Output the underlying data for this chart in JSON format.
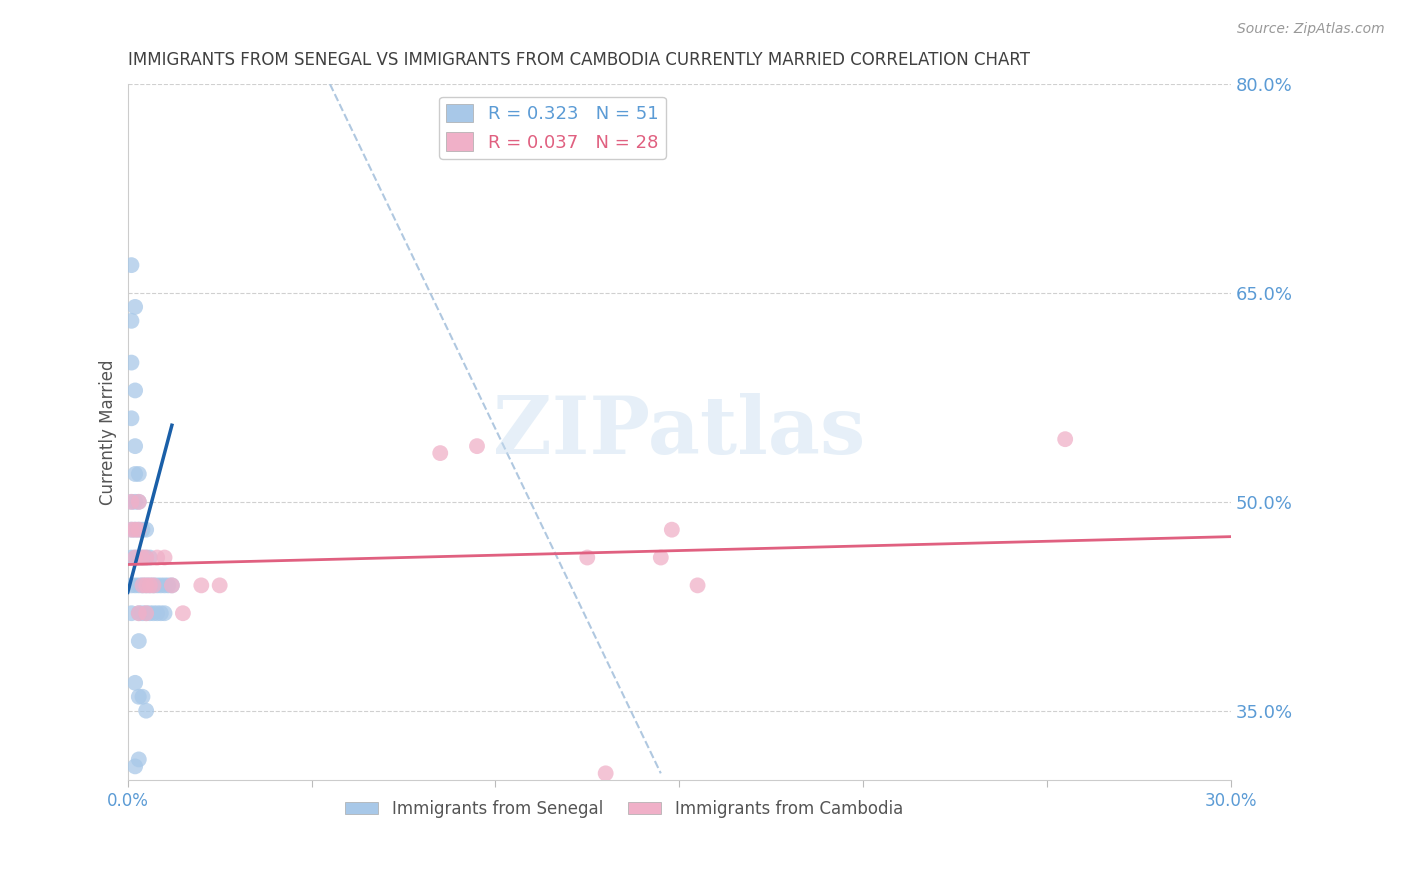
{
  "title": "IMMIGRANTS FROM SENEGAL VS IMMIGRANTS FROM CAMBODIA CURRENTLY MARRIED CORRELATION CHART",
  "source": "Source: ZipAtlas.com",
  "ylabel": "Currently Married",
  "xlim": [
    0.0,
    0.3
  ],
  "ylim": [
    0.3,
    0.8
  ],
  "ytick_vals": [
    0.35,
    0.5,
    0.65,
    0.8
  ],
  "ytick_labels_right": [
    "35.0%",
    "50.0%",
    "65.0%",
    "80.0%"
  ],
  "xtick_positions": [
    0.0,
    0.05,
    0.1,
    0.15,
    0.2,
    0.25,
    0.3
  ],
  "xtick_labels": [
    "0.0%",
    "",
    "",
    "",
    "",
    "",
    "30.0%"
  ],
  "senegal_color": "#a8c8e8",
  "cambodia_color": "#f0b0c8",
  "senegal_line_color": "#1a5fa8",
  "cambodia_line_color": "#e06080",
  "diag_line_color": "#b0c8e0",
  "grid_color": "#d0d0d0",
  "axis_label_color": "#5b9bd5",
  "title_color": "#404040",
  "background_color": "#ffffff",
  "watermark": "ZIPatlas",
  "legend_R_senegal": "0.323",
  "legend_N_senegal": "51",
  "legend_R_cambodia": "0.037",
  "legend_N_cambodia": "28",
  "senegal_x": [
    0.001,
    0.001,
    0.001,
    0.001,
    0.002,
    0.002,
    0.002,
    0.002,
    0.002,
    0.003,
    0.003,
    0.003,
    0.003,
    0.003,
    0.003,
    0.004,
    0.004,
    0.004,
    0.004,
    0.005,
    0.005,
    0.005,
    0.005,
    0.006,
    0.006,
    0.006,
    0.007,
    0.007,
    0.008,
    0.008,
    0.009,
    0.009,
    0.01,
    0.01,
    0.011,
    0.012,
    0.002,
    0.003,
    0.004,
    0.005,
    0.001,
    0.002,
    0.003,
    0.001,
    0.002,
    0.003,
    0.001,
    0.002,
    0.001,
    0.001,
    0.002
  ],
  "senegal_y": [
    0.44,
    0.46,
    0.48,
    0.42,
    0.44,
    0.46,
    0.48,
    0.5,
    0.52,
    0.44,
    0.46,
    0.48,
    0.5,
    0.42,
    0.4,
    0.44,
    0.46,
    0.48,
    0.42,
    0.44,
    0.46,
    0.48,
    0.42,
    0.44,
    0.46,
    0.42,
    0.44,
    0.42,
    0.44,
    0.42,
    0.44,
    0.42,
    0.44,
    0.42,
    0.44,
    0.44,
    0.37,
    0.36,
    0.36,
    0.35,
    0.56,
    0.54,
    0.52,
    0.5,
    0.31,
    0.315,
    0.67,
    0.64,
    0.63,
    0.6,
    0.58
  ],
  "cambodia_x": [
    0.001,
    0.001,
    0.002,
    0.002,
    0.003,
    0.003,
    0.003,
    0.004,
    0.004,
    0.005,
    0.005,
    0.005,
    0.006,
    0.007,
    0.008,
    0.01,
    0.012,
    0.015,
    0.02,
    0.025,
    0.085,
    0.095,
    0.125,
    0.148,
    0.155,
    0.255,
    0.145,
    0.13
  ],
  "cambodia_y": [
    0.48,
    0.5,
    0.48,
    0.46,
    0.5,
    0.48,
    0.42,
    0.46,
    0.44,
    0.46,
    0.44,
    0.42,
    0.44,
    0.44,
    0.46,
    0.46,
    0.44,
    0.42,
    0.44,
    0.44,
    0.535,
    0.54,
    0.46,
    0.48,
    0.44,
    0.545,
    0.46,
    0.305
  ],
  "senegal_line_x": [
    0.0,
    0.012
  ],
  "senegal_line_y": [
    0.435,
    0.555
  ],
  "cambodia_line_x": [
    0.0,
    0.3
  ],
  "cambodia_line_y": [
    0.455,
    0.475
  ],
  "diag_line_x": [
    0.055,
    0.145
  ],
  "diag_line_y": [
    0.8,
    0.305
  ]
}
